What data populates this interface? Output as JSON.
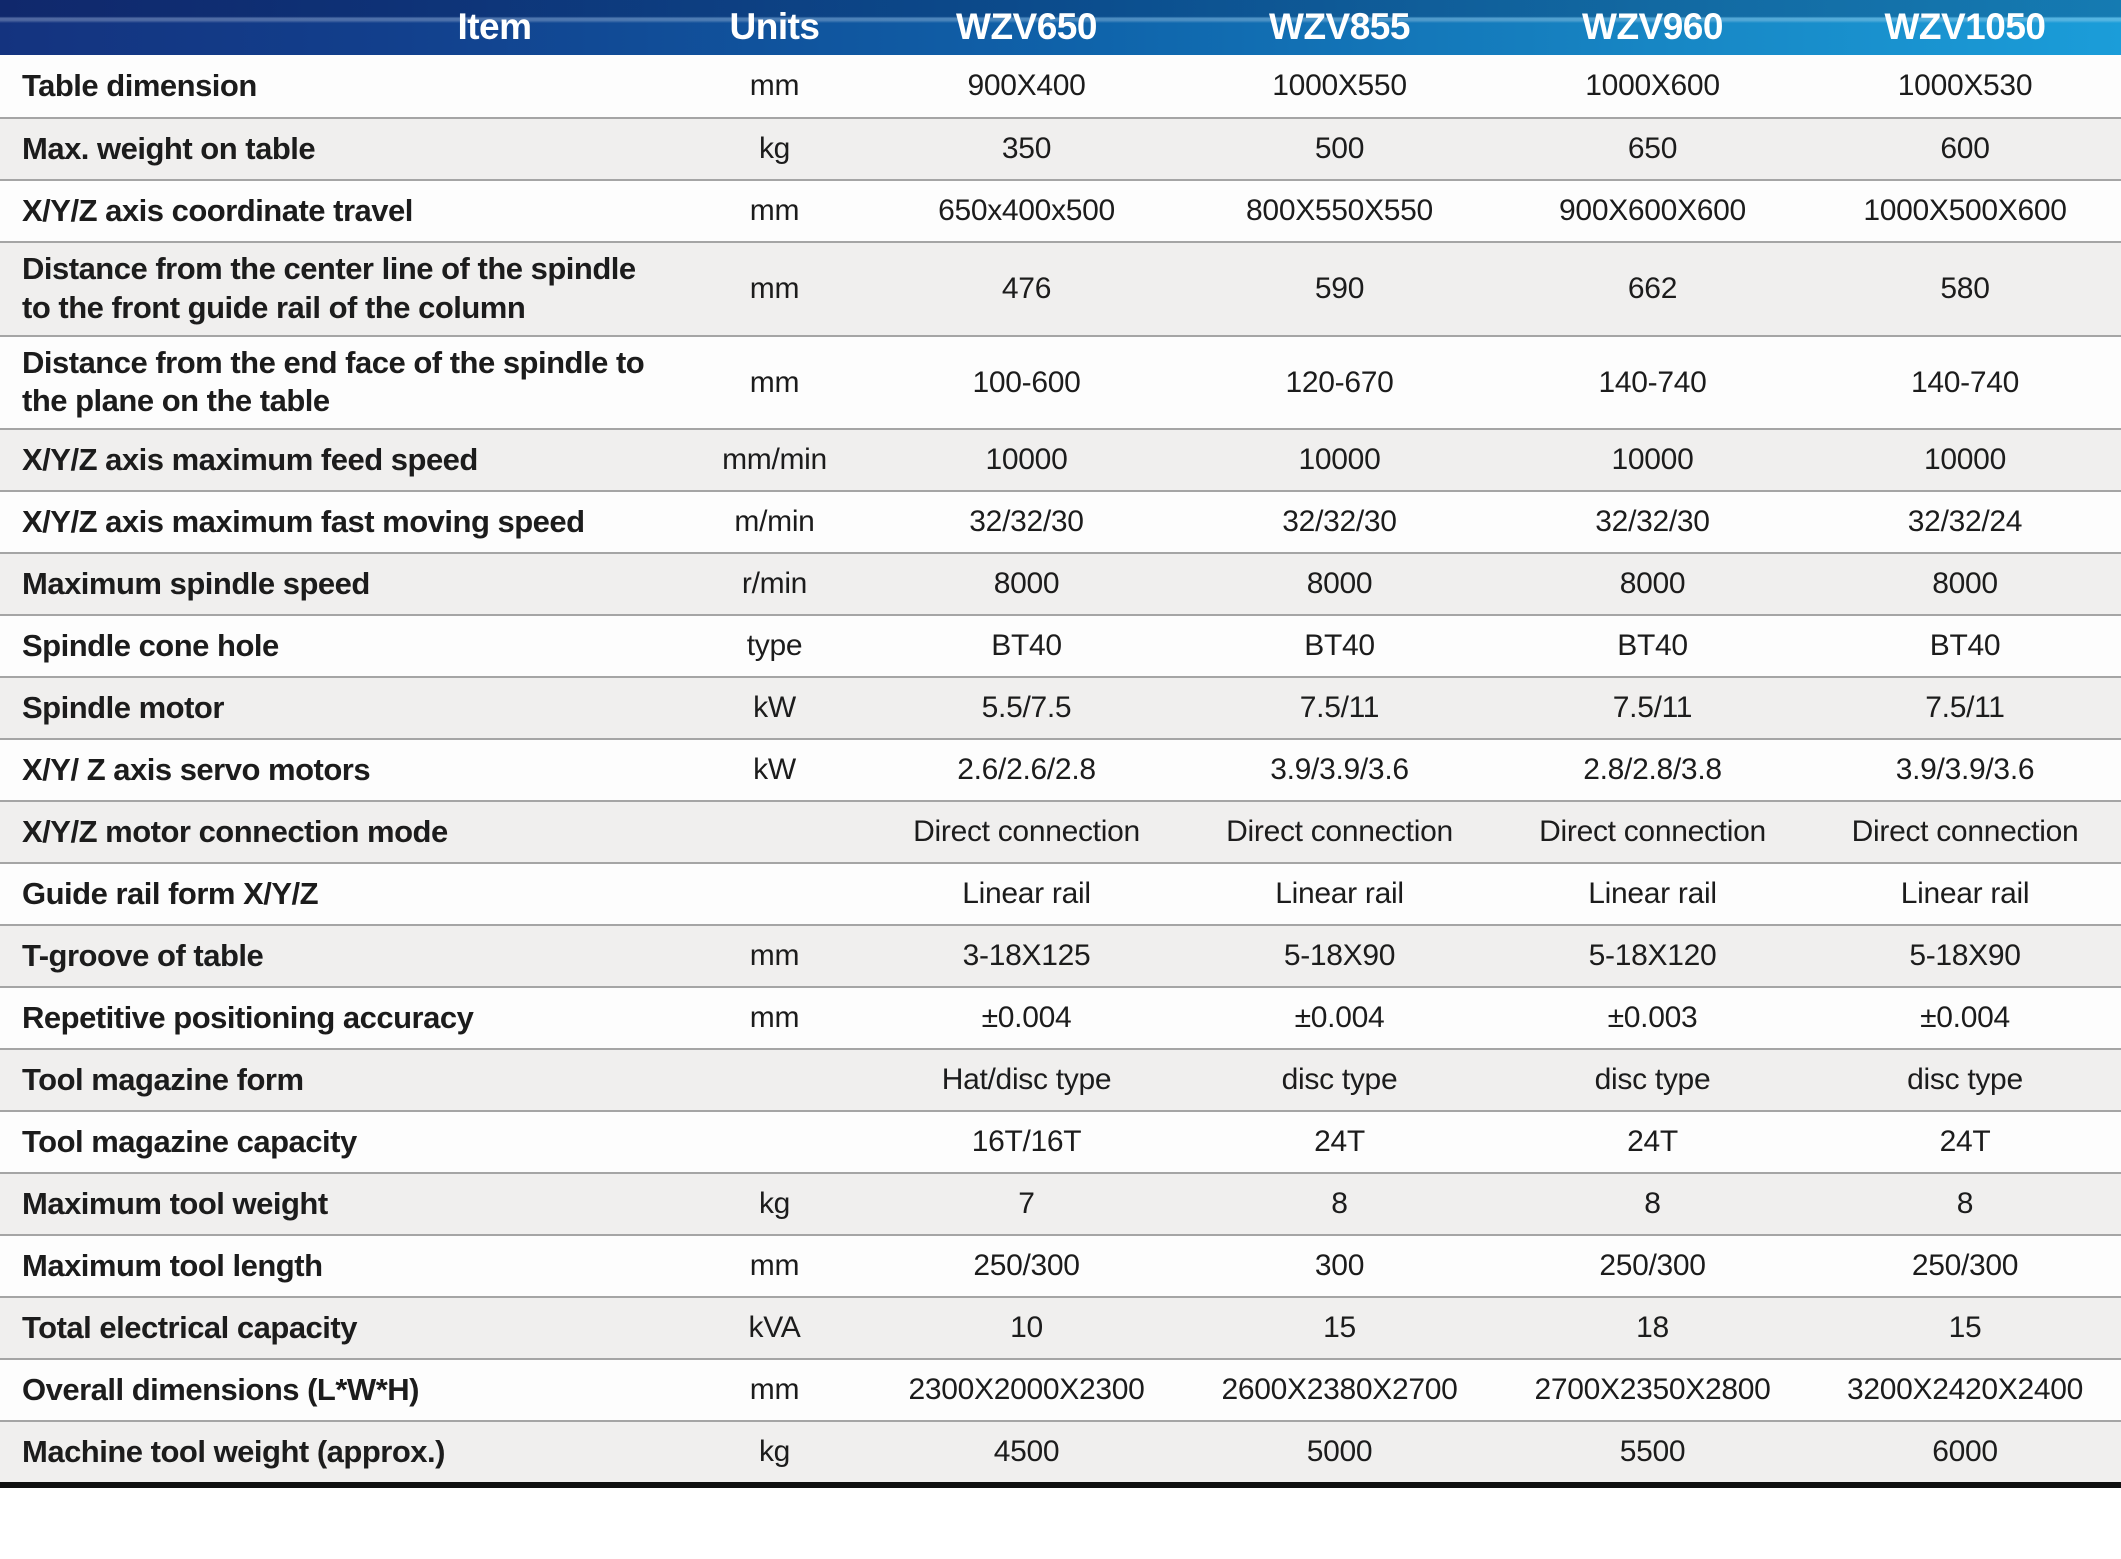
{
  "header": {
    "columns": [
      "Item",
      "Units",
      "WZV650",
      "WZV855",
      "WZV960",
      "WZV1050"
    ]
  },
  "rows": [
    {
      "item": "Table dimension",
      "unit": "mm",
      "values": [
        "900X400",
        "1000X550",
        "1000X600",
        "1000X530"
      ]
    },
    {
      "item": "Max. weight on table",
      "unit": "kg",
      "values": [
        "350",
        "500",
        "650",
        "600"
      ]
    },
    {
      "item": "X/Y/Z axis coordinate travel",
      "unit": "mm",
      "values": [
        "650x400x500",
        "800X550X550",
        "900X600X600",
        "1000X500X600"
      ]
    },
    {
      "item": "Distance from the center line of the spindle to the front guide rail of the column",
      "unit": "mm",
      "values": [
        "476",
        "590",
        "662",
        "580"
      ]
    },
    {
      "item": "Distance from the end face of the spindle to the plane on the table",
      "unit": "mm",
      "values": [
        "100-600",
        "120-670",
        "140-740",
        "140-740"
      ]
    },
    {
      "item": "X/Y/Z axis maximum feed speed",
      "unit": "mm/min",
      "values": [
        "10000",
        "10000",
        "10000",
        "10000"
      ]
    },
    {
      "item": "X/Y/Z axis maximum fast moving speed",
      "unit": "m/min",
      "values": [
        "32/32/30",
        "32/32/30",
        "32/32/30",
        "32/32/24"
      ]
    },
    {
      "item": "Maximum spindle speed",
      "unit": "r/min",
      "values": [
        "8000",
        "8000",
        "8000",
        "8000"
      ]
    },
    {
      "item": "Spindle cone hole",
      "unit": "type",
      "values": [
        "BT40",
        "BT40",
        "BT40",
        "BT40"
      ]
    },
    {
      "item": "Spindle motor",
      "unit": "kW",
      "values": [
        "5.5/7.5",
        "7.5/11",
        "7.5/11",
        "7.5/11"
      ]
    },
    {
      "item": "X/Y/ Z axis servo motors",
      "unit": "kW",
      "values": [
        "2.6/2.6/2.8",
        "3.9/3.9/3.6",
        "2.8/2.8/3.8",
        "3.9/3.9/3.6"
      ]
    },
    {
      "item": "X/Y/Z motor connection mode",
      "unit": "",
      "values": [
        "Direct connection",
        "Direct connection",
        "Direct connection",
        "Direct connection"
      ]
    },
    {
      "item": "Guide rail form X/Y/Z",
      "unit": "",
      "values": [
        "Linear rail",
        "Linear rail",
        "Linear rail",
        "Linear rail"
      ]
    },
    {
      "item": "T-groove of table",
      "unit": "mm",
      "values": [
        "3-18X125",
        "5-18X90",
        "5-18X120",
        "5-18X90"
      ]
    },
    {
      "item": "Repetitive positioning accuracy",
      "unit": "mm",
      "values": [
        "±0.004",
        "±0.004",
        "±0.003",
        "±0.004"
      ]
    },
    {
      "item": "Tool magazine form",
      "unit": "",
      "values": [
        "Hat/disc type",
        "disc type",
        "disc type",
        "disc type"
      ]
    },
    {
      "item": "Tool magazine capacity",
      "unit": "",
      "values": [
        "16T/16T",
        "24T",
        "24T",
        "24T"
      ]
    },
    {
      "item": "Maximum tool weight",
      "unit": "kg",
      "values": [
        "7",
        "8",
        "8",
        "8"
      ]
    },
    {
      "item": "Maximum tool length",
      "unit": "mm",
      "values": [
        "250/300",
        "300",
        "250/300",
        "250/300"
      ]
    },
    {
      "item": "Total electrical capacity",
      "unit": "kVA",
      "values": [
        "10",
        "15",
        "18",
        "15"
      ]
    },
    {
      "item": "Overall dimensions (L*W*H)",
      "unit": "mm",
      "values": [
        "2300X2000X2300",
        "2600X2380X2700",
        "2700X2350X2800",
        "3200X2420X2400"
      ]
    },
    {
      "item": "Machine tool weight (approx.)",
      "unit": "kg",
      "values": [
        "4500",
        "5000",
        "5500",
        "6000"
      ]
    }
  ],
  "colors": {
    "header_gradient_left": "#14337f",
    "header_gradient_mid": "#0f64ab",
    "header_gradient_right": "#1b9dd9",
    "header_text": "#ffffff",
    "row_white": "#fdfdfd",
    "row_gray": "#f0efee",
    "separator": "#a5a5a5",
    "bottom_bar": "#101010",
    "body_text": "#1c1c1c"
  }
}
